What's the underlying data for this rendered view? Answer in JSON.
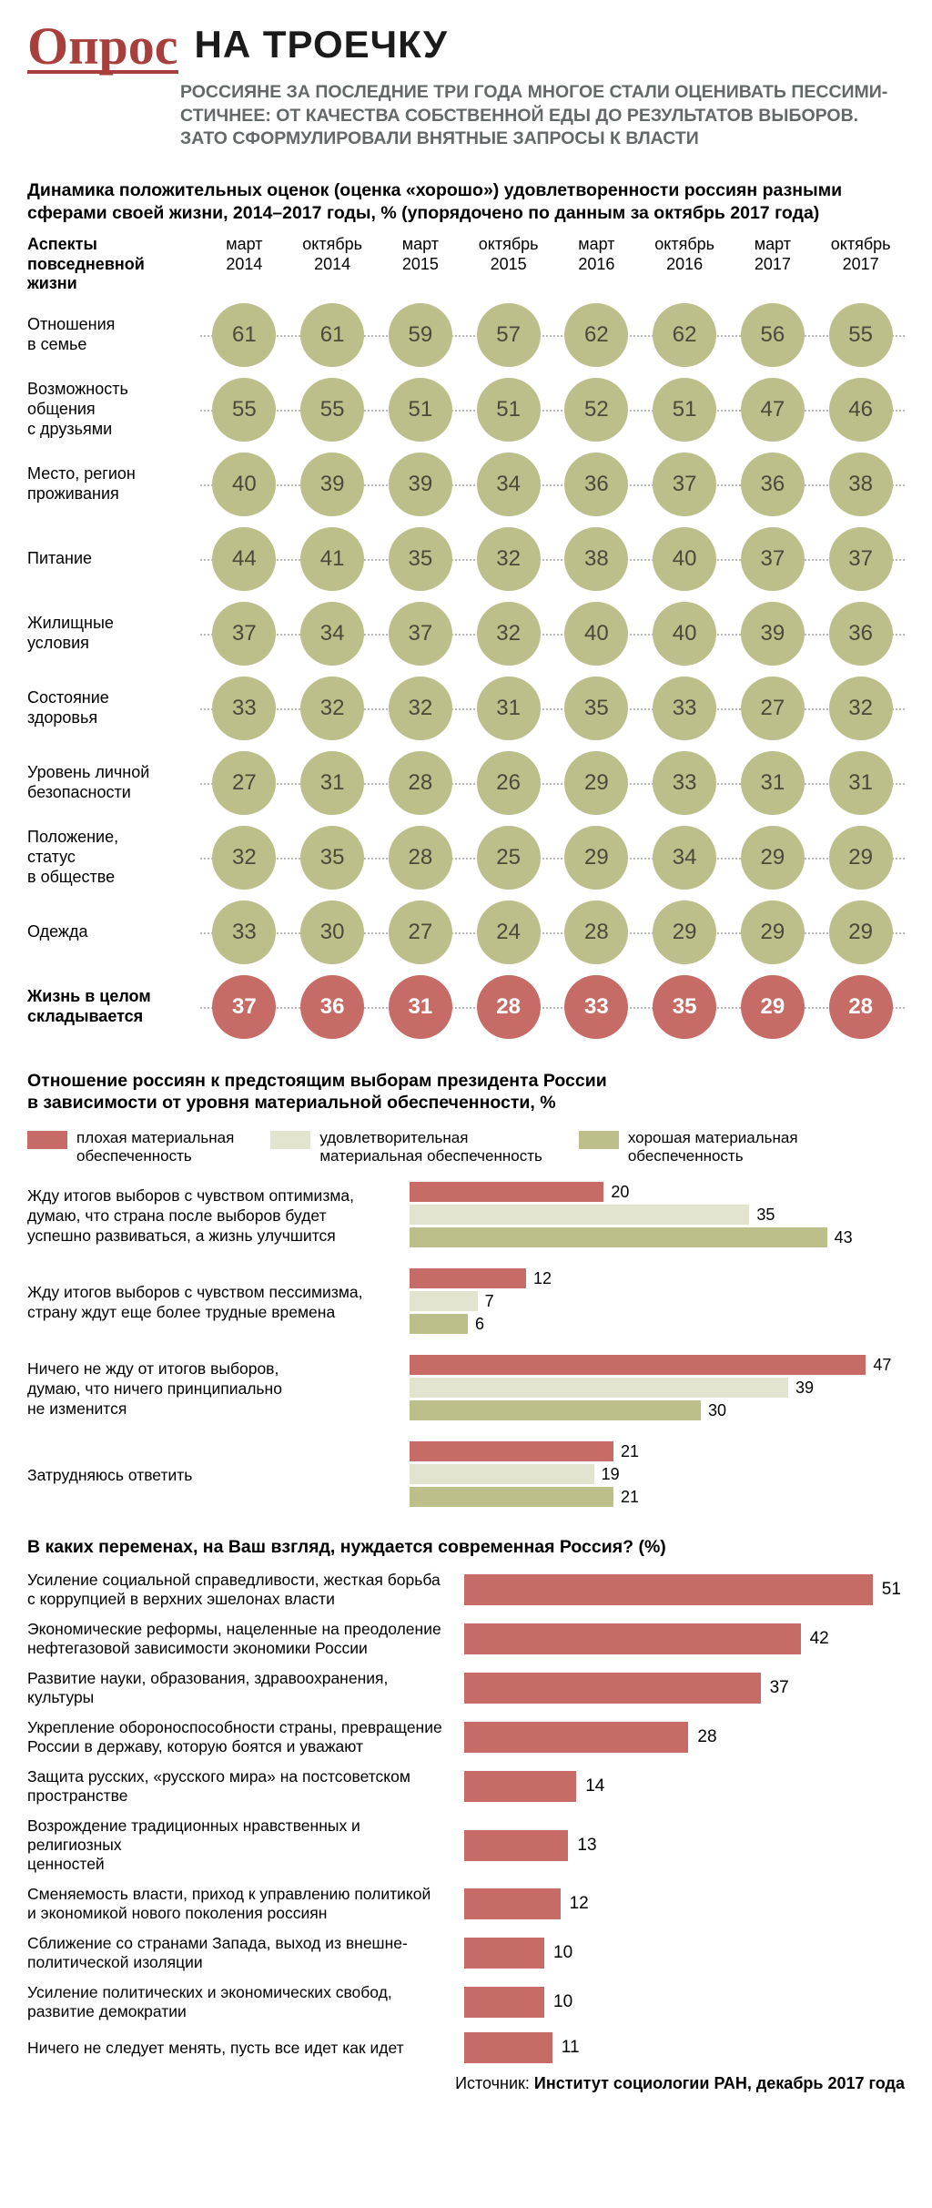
{
  "colors": {
    "green": "#bdbf8b",
    "red": "#c66b65",
    "light": "#e3e4cf",
    "brand": "#a93f3c",
    "text_gray": "#636869"
  },
  "logo": "Опрос",
  "title": "НА ТРОЕЧКУ",
  "subtitle": "РОССИЯНЕ ЗА ПОСЛЕДНИЕ ТРИ ГОДА МНОГОЕ СТАЛИ ОЦЕНИВАТЬ ПЕССИМИ-СТИЧНЕЕ: ОТ КАЧЕСТВА СОБСТВЕННОЙ ЕДЫ ДО РЕЗУЛЬТАТОВ ВЫБОРОВ. ЗАТО СФОРМУЛИРОВАЛИ ВНЯТНЫЕ ЗАПРОСЫ К ВЛАСТИ",
  "matrix": {
    "desc": "Динамика положительных оценок (оценка «хорошо») удовлетворенности россиян разными сферами своей жизни, 2014–2017 годы, % (упорядочено по данным за октябрь 2017 года)",
    "row_header": "Аспекты\nповседневной\nжизни",
    "cols": [
      {
        "m": "март",
        "y": "2014"
      },
      {
        "m": "октябрь",
        "y": "2014"
      },
      {
        "m": "март",
        "y": "2015"
      },
      {
        "m": "октябрь",
        "y": "2015"
      },
      {
        "m": "март",
        "y": "2016"
      },
      {
        "m": "октябрь",
        "y": "2016"
      },
      {
        "m": "март",
        "y": "2017"
      },
      {
        "m": "октябрь",
        "y": "2017"
      }
    ],
    "rows": [
      {
        "label": "Отношения\nв семье",
        "vals": [
          61,
          61,
          59,
          57,
          62,
          62,
          56,
          55
        ],
        "red": false
      },
      {
        "label": "Возможность\nобщения\nс друзьями",
        "vals": [
          55,
          55,
          51,
          51,
          52,
          51,
          47,
          46
        ],
        "red": false
      },
      {
        "label": "Место, регион\nпроживания",
        "vals": [
          40,
          39,
          39,
          34,
          36,
          37,
          36,
          38
        ],
        "red": false
      },
      {
        "label": "Питание",
        "vals": [
          44,
          41,
          35,
          32,
          38,
          40,
          37,
          37
        ],
        "red": false
      },
      {
        "label": "Жилищные\nусловия",
        "vals": [
          37,
          34,
          37,
          32,
          40,
          40,
          39,
          36
        ],
        "red": false
      },
      {
        "label": "Состояние\nздоровья",
        "vals": [
          33,
          32,
          32,
          31,
          35,
          33,
          27,
          32
        ],
        "red": false
      },
      {
        "label": "Уровень личной\nбезопасности",
        "vals": [
          27,
          31,
          28,
          26,
          29,
          33,
          31,
          31
        ],
        "red": false
      },
      {
        "label": "Положение,\nстатус\nв обществе",
        "vals": [
          32,
          35,
          28,
          25,
          29,
          34,
          29,
          29
        ],
        "red": false
      },
      {
        "label": "Одежда",
        "vals": [
          33,
          30,
          27,
          24,
          28,
          29,
          29,
          29
        ],
        "red": false
      },
      {
        "label": "Жизнь в целом\nскладывается",
        "vals": [
          37,
          36,
          31,
          28,
          33,
          35,
          29,
          28
        ],
        "red": true,
        "bold": true
      }
    ]
  },
  "chart2": {
    "title": "Отношение россиян к предстоящим выборам президента России\nв зависимости от уровня материальной обеспеченности, %",
    "legend": [
      {
        "label": "плохая материальная\nобеспеченность",
        "color": "#c66b65"
      },
      {
        "label": "удовлетворительная\nматериальная обеспеченность",
        "color": "#e3e4cf"
      },
      {
        "label": "хорошая материальная\nобеспеченность",
        "color": "#bdbf8b"
      }
    ],
    "max": 51,
    "groups": [
      {
        "label": "Жду итогов выборов с чувством оптимизма,\nдумаю, что страна после выборов будет\nуспешно развиваться, а жизнь улучшится",
        "vals": [
          20,
          35,
          43
        ]
      },
      {
        "label": "Жду итогов выборов с чувством пессимизма,\nстрану ждут еще более трудные времена",
        "vals": [
          12,
          7,
          6
        ]
      },
      {
        "label": "Ничего не жду от итогов выборов,\nдумаю, что ничего принципиально\nне изменится",
        "vals": [
          47,
          39,
          30
        ]
      },
      {
        "label": "Затрудняюсь ответить",
        "vals": [
          21,
          19,
          21
        ]
      }
    ]
  },
  "chart3": {
    "title": "В каких переменах, на Ваш взгляд, нуждается современная Россия? (%)",
    "max": 55,
    "color": "#c66b65",
    "rows": [
      {
        "label": "Усиление социальной справедливости, жесткая борьба\nс коррупцией в верхних эшелонах власти",
        "val": 51
      },
      {
        "label": "Экономические реформы, нацеленные на преодоление\nнефтегазовой зависимости экономики России",
        "val": 42
      },
      {
        "label": "Развитие науки, образования, здравоохранения, культуры",
        "val": 37
      },
      {
        "label": "Укрепление обороноспособности страны, превращение\nРоссии в державу, которую боятся и уважают",
        "val": 28
      },
      {
        "label": "Защита русских, «русского мира» на постсоветском\nпространстве",
        "val": 14
      },
      {
        "label": "Возрождение традиционных нравственных и религиозных\nценностей",
        "val": 13
      },
      {
        "label": "Сменяемость власти, приход к управлению политикой\nи экономикой нового поколения россиян",
        "val": 12
      },
      {
        "label": "Сближение со странами Запада, выход из внешне-\nполитической изоляции",
        "val": 10
      },
      {
        "label": "Усиление политических и экономических свобод,\nразвитие демократии",
        "val": 10
      },
      {
        "label": "Ничего не следует менять, пусть все идет как идет",
        "val": 11
      }
    ]
  },
  "source_prefix": "Источник: ",
  "source_name": "Институт социологии РАН, декабрь 2017 года"
}
